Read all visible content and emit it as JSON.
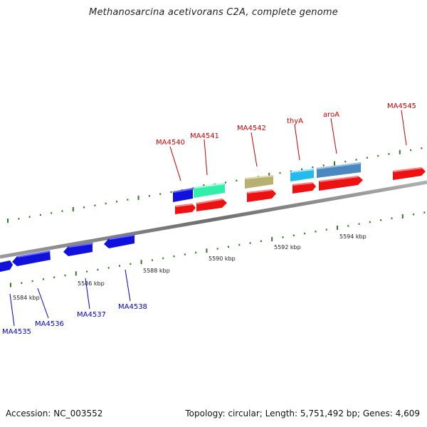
{
  "title": "Methanosarcina acetivorans C2A, complete genome",
  "footer": {
    "accession": "Accession: NC_003552",
    "summary": "Topology: circular; Length: 5,751,492 bp; Genes: 4,609"
  },
  "colors": {
    "backbone": "#8a8a8a",
    "tick": "#2e7d1e",
    "label_forward": "#cc0000",
    "label_reverse": "#0000cc",
    "gene_red": "#ee1111",
    "gene_blue": "#1111dd",
    "gene_green": "#33eeaa",
    "gene_olive": "#b8b070",
    "gene_sky": "#22bbee",
    "gene_steel": "#4a88c0"
  },
  "scale_labels": [
    "5584 kbp",
    "5586 kbp",
    "5588 kbp",
    "5590 kbp",
    "5592 kbp",
    "5594 kbp"
  ],
  "forward_genes": [
    {
      "label": "MA4540",
      "color": "#cc0000"
    },
    {
      "label": "MA4541",
      "color": "#cc0000"
    },
    {
      "label": "MA4542",
      "color": "#cc0000"
    },
    {
      "label": "thyA",
      "color": "#cc0000"
    },
    {
      "label": "aroA",
      "color": "#cc0000"
    },
    {
      "label": "MA4545",
      "color": "#cc0000"
    }
  ],
  "reverse_genes": [
    {
      "label": "MA4535",
      "color": "#0000cc"
    },
    {
      "label": "MA4536",
      "color": "#0000cc"
    },
    {
      "label": "MA4537",
      "color": "#0000cc"
    },
    {
      "label": "MA4538",
      "color": "#0000cc"
    }
  ]
}
